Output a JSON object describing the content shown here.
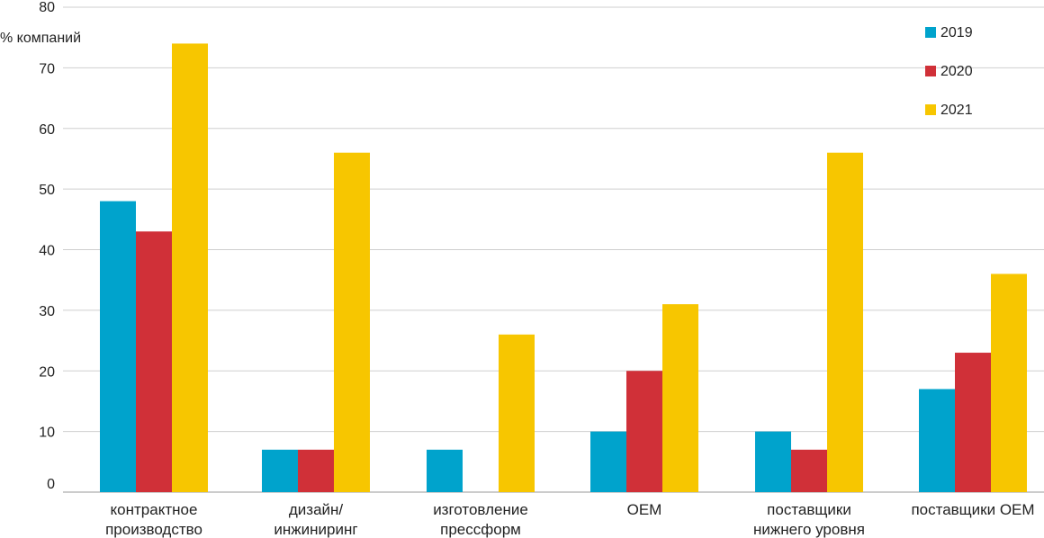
{
  "chart_data": {
    "type": "bar",
    "ylabel": "% компаний",
    "ylim": [
      0,
      80
    ],
    "yticks": [
      0,
      10,
      20,
      30,
      40,
      50,
      60,
      70,
      80
    ],
    "grid": true,
    "legend_position": "top-right",
    "categories": [
      [
        "контрактное",
        "производство"
      ],
      [
        "дизайн/",
        "инжиниринг"
      ],
      [
        "изготовление",
        "прессформ"
      ],
      [
        "OEM"
      ],
      [
        "поставщики",
        "нижнего уровня"
      ],
      [
        "поставщики OEM"
      ]
    ],
    "series": [
      {
        "name": "2019",
        "color": "#00a3cc",
        "values": [
          48,
          7,
          7,
          10,
          10,
          17
        ]
      },
      {
        "name": "2020",
        "color": "#d03038",
        "values": [
          43,
          7,
          0,
          20,
          7,
          23
        ]
      },
      {
        "name": "2021",
        "color": "#f7c600",
        "values": [
          74,
          56,
          26,
          31,
          56,
          36
        ]
      }
    ]
  }
}
